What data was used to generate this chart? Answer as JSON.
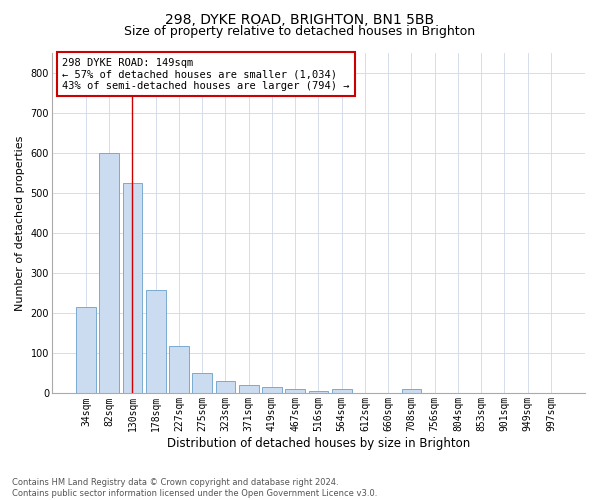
{
  "title": "298, DYKE ROAD, BRIGHTON, BN1 5BB",
  "subtitle": "Size of property relative to detached houses in Brighton",
  "xlabel": "Distribution of detached houses by size in Brighton",
  "ylabel": "Number of detached properties",
  "footnote": "Contains HM Land Registry data © Crown copyright and database right 2024.\nContains public sector information licensed under the Open Government Licence v3.0.",
  "bar_labels": [
    "34sqm",
    "82sqm",
    "130sqm",
    "178sqm",
    "227sqm",
    "275sqm",
    "323sqm",
    "371sqm",
    "419sqm",
    "467sqm",
    "516sqm",
    "564sqm",
    "612sqm",
    "660sqm",
    "708sqm",
    "756sqm",
    "804sqm",
    "853sqm",
    "901sqm",
    "949sqm",
    "997sqm"
  ],
  "bar_values": [
    215,
    600,
    525,
    257,
    118,
    50,
    30,
    20,
    17,
    10,
    7,
    10,
    0,
    0,
    10,
    0,
    0,
    0,
    0,
    0,
    0
  ],
  "bar_color": "#ccdcf0",
  "bar_edge_color": "#7aaad0",
  "vline_x": 2,
  "vline_color": "#cc0000",
  "annotation_text": "298 DYKE ROAD: 149sqm\n← 57% of detached houses are smaller (1,034)\n43% of semi-detached houses are larger (794) →",
  "annotation_box_color": "#ffffff",
  "annotation_box_edge": "#cc0000",
  "ylim": [
    0,
    850
  ],
  "yticks": [
    0,
    100,
    200,
    300,
    400,
    500,
    600,
    700,
    800
  ],
  "background_color": "#ffffff",
  "plot_background": "#ffffff",
  "grid_color": "#d0d8e8",
  "title_fontsize": 10,
  "subtitle_fontsize": 9,
  "xlabel_fontsize": 8.5,
  "ylabel_fontsize": 8,
  "tick_fontsize": 7,
  "annotation_fontsize": 7.5
}
